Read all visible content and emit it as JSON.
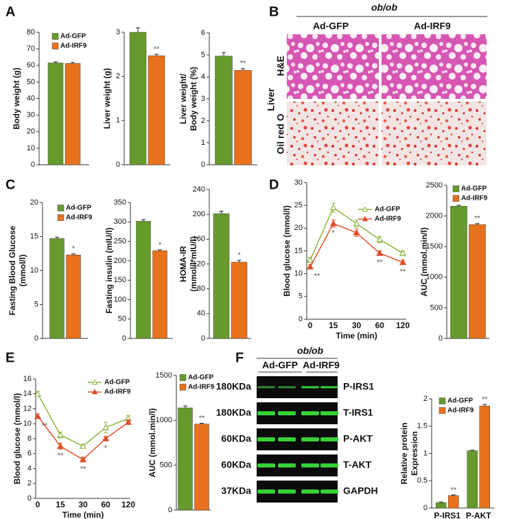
{
  "panels": [
    "A",
    "B",
    "C",
    "D",
    "E",
    "F"
  ],
  "histology": {
    "group": "ob/ob",
    "columns": [
      "Ad-GFP",
      "Ad-IRF9"
    ],
    "tissue": "Liver",
    "rows": [
      "H&E",
      "Oil red O"
    ]
  },
  "blot": {
    "group": "ob/ob",
    "columns": [
      "Ad-GFP",
      "Ad-IRF9"
    ],
    "sizes": [
      "180KDa",
      "180KDa",
      "60KDa",
      "60KDa",
      "37KDa"
    ],
    "proteins": [
      "P-IRS1",
      "T-IRS1",
      "P-AKT",
      "T-AKT",
      "GAPDH"
    ]
  },
  "chart_data": [
    {
      "type": "bar",
      "ylabel": [
        "Body weight (g)"
      ],
      "categories": [
        null
      ],
      "ylim": [
        0,
        80
      ],
      "yticks": [
        0,
        10,
        20,
        30,
        40,
        50,
        60,
        70,
        80
      ],
      "legend": "upper left",
      "series": [
        {
          "name": "Ad-GFP",
          "color": "#669a2c",
          "values": [
            61.5
          ],
          "errors": [
            0.5
          ]
        },
        {
          "name": "Ad-IRF9",
          "color": "#e8711d",
          "values": [
            61.2
          ],
          "errors": [
            0.6
          ]
        }
      ]
    },
    {
      "type": "bar",
      "ylabel": [
        "Liver weight (g)"
      ],
      "categories": [
        null
      ],
      "ylim": [
        0,
        3
      ],
      "yticks": [
        0,
        1,
        2,
        3
      ],
      "series": [
        {
          "name": "Ad-GFP",
          "color": "#669a2c",
          "values": [
            3.0
          ],
          "errors": [
            0.1
          ]
        },
        {
          "name": "Ad-IRF9",
          "color": "#e8711d",
          "values": [
            2.47
          ],
          "errors": [
            0.03
          ],
          "significance": [
            "**"
          ]
        }
      ]
    },
    {
      "type": "bar",
      "ylabel": [
        "Liver weight/",
        "Body weight (%)"
      ],
      "categories": [
        null
      ],
      "ylim": [
        0,
        6
      ],
      "yticks": [
        0,
        1,
        2,
        3,
        4,
        5,
        6
      ],
      "series": [
        {
          "name": "Ad-GFP",
          "color": "#669a2c",
          "values": [
            4.95
          ],
          "errors": [
            0.15
          ]
        },
        {
          "name": "Ad-IRF9",
          "color": "#e8711d",
          "values": [
            4.3
          ],
          "errors": [
            0.08
          ],
          "significance": [
            "**"
          ]
        }
      ]
    },
    {
      "type": "bar",
      "ylabel": [
        "Fasting Blood Glucose",
        "(mmol/l)"
      ],
      "categories": [
        null
      ],
      "ylim": [
        0,
        20
      ],
      "yticks": [
        0,
        5,
        10,
        15,
        20
      ],
      "legend": "upper left",
      "series": [
        {
          "name": "Ad-GFP",
          "color": "#669a2c",
          "values": [
            14.7
          ],
          "errors": [
            0.2
          ]
        },
        {
          "name": "Ad-IRF9",
          "color": "#e8711d",
          "values": [
            12.3
          ],
          "errors": [
            0.15
          ],
          "significance": [
            "*"
          ]
        }
      ]
    },
    {
      "type": "bar",
      "ylabel": [
        "Fasting insulin (mIU/l)"
      ],
      "categories": [
        null
      ],
      "ylim": [
        0,
        350
      ],
      "yticks": [
        0,
        50,
        100,
        150,
        200,
        250,
        300,
        350
      ],
      "series": [
        {
          "name": "Ad-GFP",
          "color": "#669a2c",
          "values": [
            302
          ],
          "errors": [
            4
          ]
        },
        {
          "name": "Ad-IRF9",
          "color": "#e8711d",
          "values": [
            226
          ],
          "errors": [
            2
          ],
          "significance": [
            "*"
          ]
        }
      ]
    },
    {
      "type": "bar",
      "ylabel": [
        "HOMA-IR",
        "(mmol/l*mIU/l)"
      ],
      "categories": [
        null
      ],
      "ylim": [
        0,
        240
      ],
      "yticks": [
        0,
        40,
        80,
        120,
        160,
        200,
        240
      ],
      "series": [
        {
          "name": "Ad-GFP",
          "color": "#669a2c",
          "values": [
            201
          ],
          "errors": [
            4
          ]
        },
        {
          "name": "Ad-IRF9",
          "color": "#e8711d",
          "values": [
            123
          ],
          "errors": [
            3
          ],
          "significance": [
            "*"
          ]
        }
      ]
    },
    {
      "type": "line",
      "ylabel": [
        "Blood glucose (mmol/l)"
      ],
      "xlabel": "Time (min)",
      "categories": [
        "0",
        "15",
        "30",
        "60",
        "120"
      ],
      "ylim": [
        0,
        30
      ],
      "yticks": [
        0,
        5,
        10,
        15,
        20,
        25,
        30
      ],
      "legend": "upper right",
      "series": [
        {
          "name": "Ad-GFP",
          "color": "#8cb43c",
          "marker": "triangle-open",
          "values": [
            13,
            24.5,
            21,
            17.5,
            14.5
          ],
          "errors": [
            0.5,
            1,
            0.8,
            0.7,
            0.5
          ]
        },
        {
          "name": "Ad-IRF9",
          "color": "#e0502a",
          "marker": "triangle",
          "values": [
            11.5,
            21,
            19,
            14.5,
            12.5
          ],
          "errors": [
            0.5,
            0.8,
            0.8,
            0.5,
            0.5
          ],
          "significance": [
            "**",
            "*",
            null,
            "**",
            "**"
          ]
        }
      ]
    },
    {
      "type": "bar",
      "ylabel": [
        "AUC (mmol.min/l)"
      ],
      "categories": [
        null
      ],
      "ylim": [
        0,
        2500
      ],
      "yticks": [
        0,
        500,
        1000,
        1500,
        2000,
        2500
      ],
      "legend": "upper left",
      "series": [
        {
          "name": "Ad-GFP",
          "color": "#669a2c",
          "values": [
            2160
          ],
          "errors": [
            15
          ]
        },
        {
          "name": "Ad-IRF9",
          "color": "#e8711d",
          "values": [
            1860
          ],
          "errors": [
            15
          ],
          "significance": [
            "**"
          ]
        }
      ]
    },
    {
      "type": "line",
      "ylabel": [
        "Blood glucose (mmol/l)"
      ],
      "xlabel": "Time (min)",
      "categories": [
        "0",
        "15",
        "30",
        "60",
        "120"
      ],
      "ylim": [
        0,
        16
      ],
      "yticks": [
        0,
        2,
        4,
        6,
        8,
        10,
        12,
        14,
        16
      ],
      "legend": "upper right",
      "series": [
        {
          "name": "Ad-GFP",
          "color": "#8cb43c",
          "marker": "triangle-open",
          "values": [
            14,
            8.5,
            7,
            9.5,
            10.7
          ],
          "errors": [
            0.3,
            0.4,
            0.2,
            0.7,
            0.4
          ]
        },
        {
          "name": "Ad-IRF9",
          "color": "#e0502a",
          "marker": "triangle",
          "values": [
            11,
            7,
            5.2,
            8,
            10.2
          ],
          "errors": [
            0.3,
            0.4,
            0.3,
            0.3,
            0.3
          ],
          "significance": [
            "**",
            "**",
            "**",
            "*",
            null
          ]
        }
      ]
    },
    {
      "type": "bar",
      "ylabel": [
        "AUC (mmol.min/l)"
      ],
      "categories": [
        null
      ],
      "ylim": [
        0,
        1500
      ],
      "yticks": [
        0,
        500,
        1000,
        1500
      ],
      "legend": "upper left",
      "series": [
        {
          "name": "Ad-GFP",
          "color": "#669a2c",
          "values": [
            1140
          ],
          "errors": [
            20
          ]
        },
        {
          "name": "Ad-IRF9",
          "color": "#e8711d",
          "values": [
            960
          ],
          "errors": [
            8
          ],
          "significance": [
            "**"
          ]
        }
      ]
    },
    {
      "type": "bar",
      "ylabel": [
        "Relative protein",
        "Expression"
      ],
      "categories": [
        "P-IRS1",
        "P-AKT"
      ],
      "ylim": [
        0,
        2
      ],
      "yticks": [
        0,
        0.5,
        1,
        1.5,
        2
      ],
      "legend": "upper left",
      "series": [
        {
          "name": "Ad-GFP",
          "color": "#669a2c",
          "values": [
            0.1,
            1.05
          ],
          "errors": [
            0.01,
            0.01
          ]
        },
        {
          "name": "Ad-IRF9",
          "color": "#e8711d",
          "values": [
            0.23,
            1.87
          ],
          "errors": [
            0.01,
            0.03
          ],
          "significance": [
            "**",
            "**"
          ]
        }
      ]
    }
  ]
}
